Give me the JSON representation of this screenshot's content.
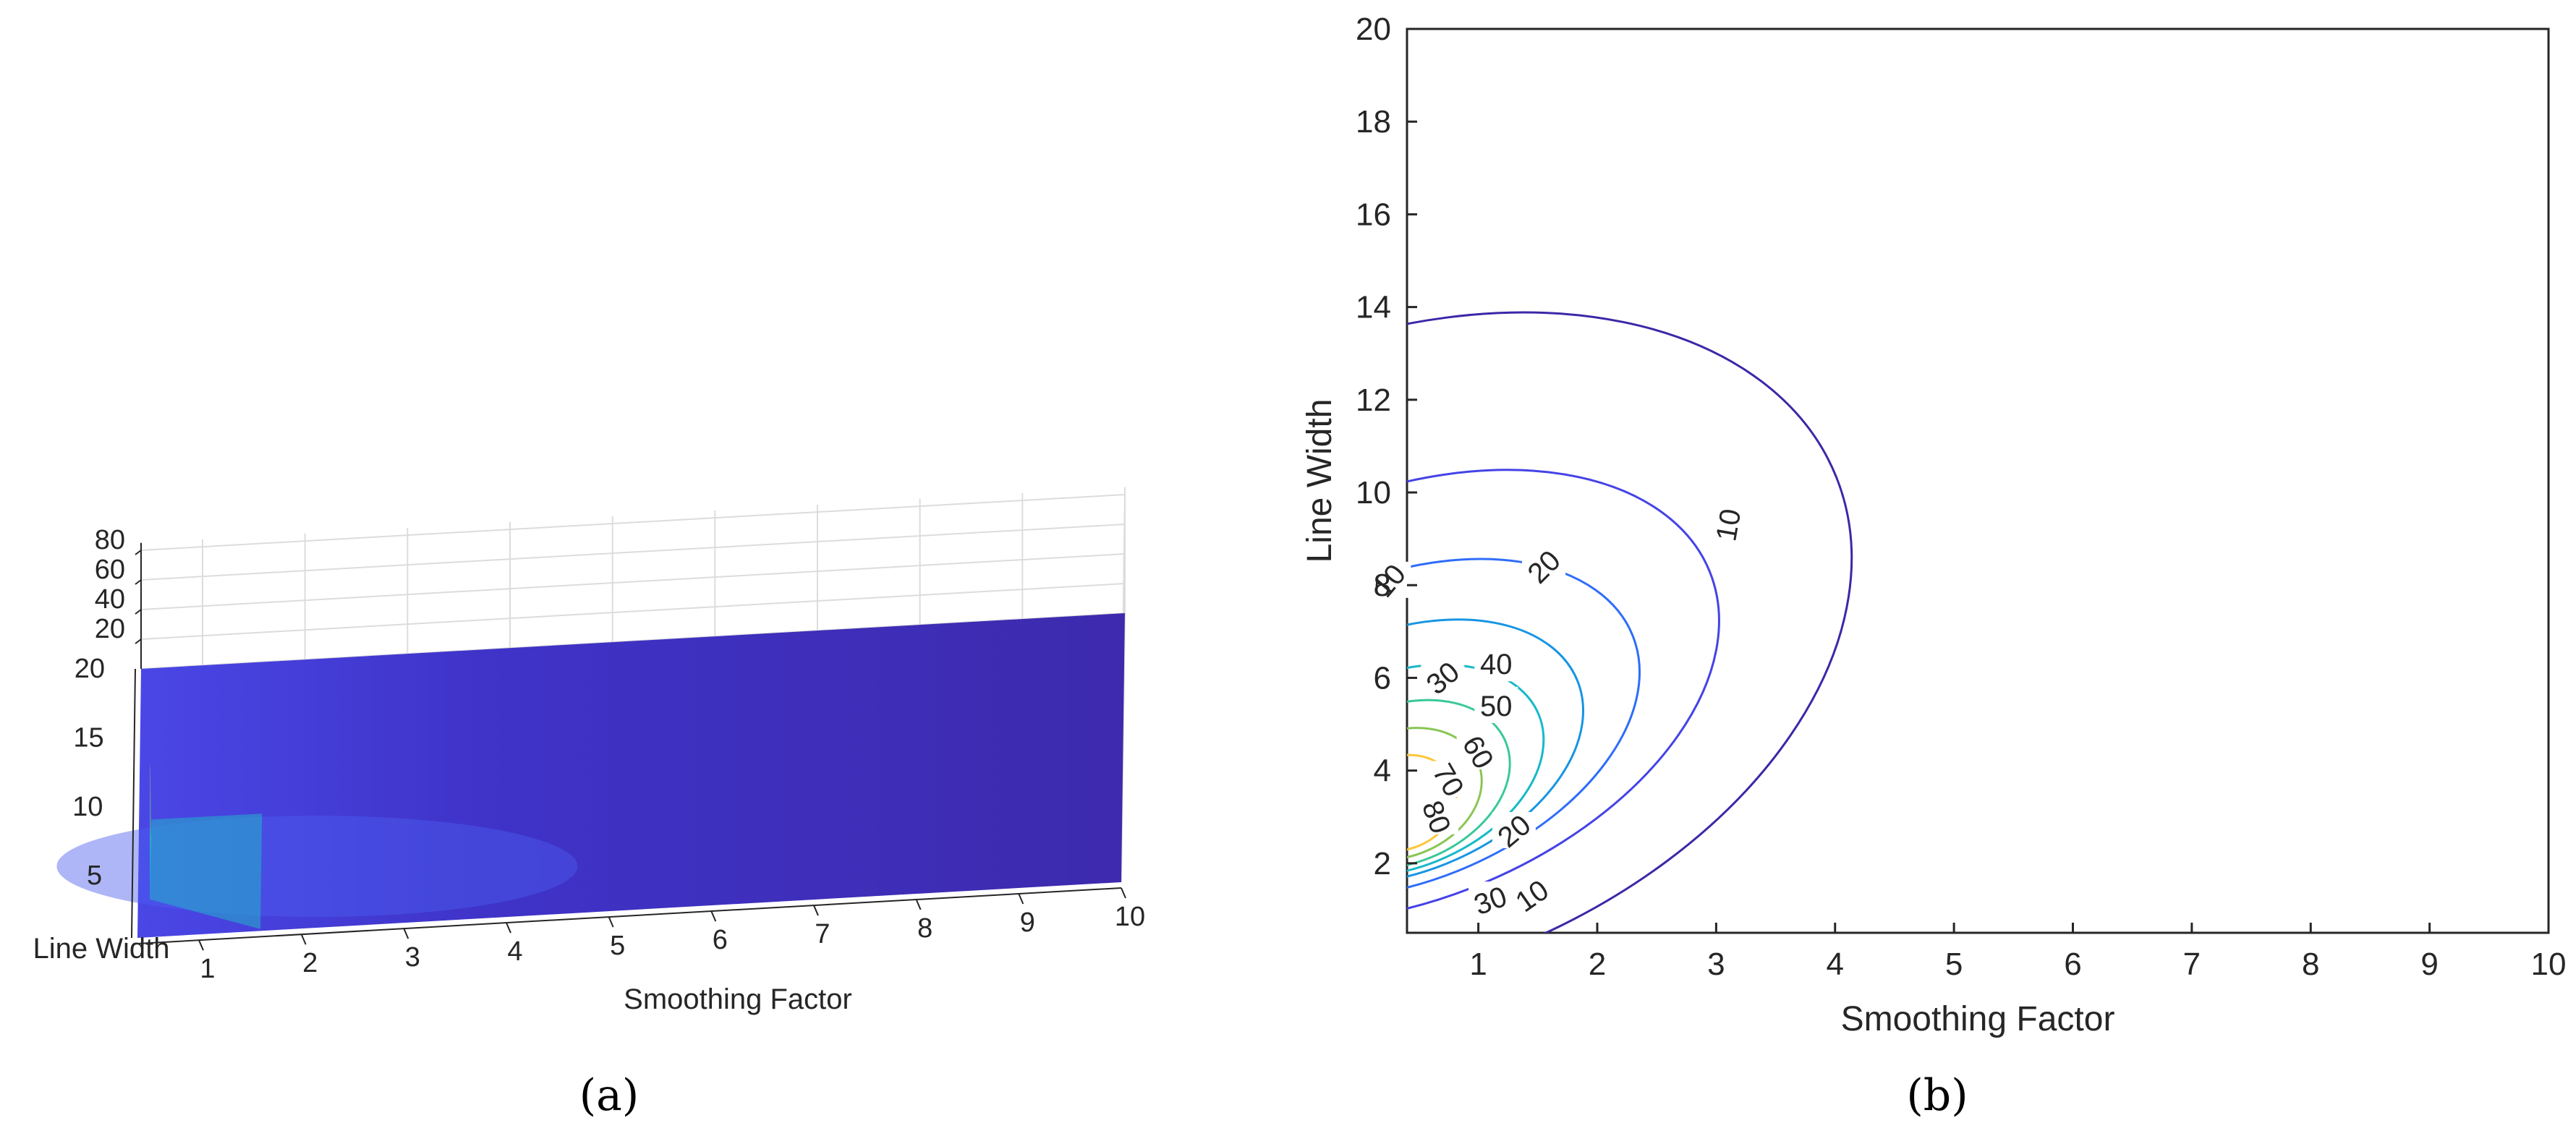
{
  "panels": {
    "a": {
      "caption": "(a)"
    },
    "b": {
      "caption": "(b)"
    }
  },
  "chart_data": [
    {
      "type": "surface",
      "panel": "a",
      "xlabel": "Smoothing Factor",
      "ylabel": "Line Width",
      "zlabel": "",
      "x_ticks": [
        "1",
        "2",
        "3",
        "4",
        "5",
        "6",
        "7",
        "8",
        "9",
        "10"
      ],
      "y_ticks": [
        "5",
        "10",
        "15",
        "20"
      ],
      "z_ticks": [
        "20",
        "40",
        "60",
        "80"
      ],
      "xlim": [
        0.4,
        10
      ],
      "ylim": [
        0.5,
        20
      ],
      "zlim": [
        0,
        80
      ],
      "grid": true,
      "colormap": [
        "#3e26a8",
        "#2f6dfa",
        "#17b9c9",
        "#8ac555",
        "#fec639",
        "#f9fb0e"
      ],
      "peak": {
        "x": 0.4,
        "y": 3.2,
        "z": 90
      }
    },
    {
      "type": "contour",
      "panel": "b",
      "xlabel": "Smoothing Factor",
      "ylabel": "Line Width",
      "x_ticks": [
        "1",
        "2",
        "3",
        "4",
        "5",
        "6",
        "7",
        "8",
        "9",
        "10"
      ],
      "y_ticks": [
        "2",
        "4",
        "6",
        "8",
        "10",
        "12",
        "14",
        "16",
        "18",
        "20"
      ],
      "xlim": [
        0.4,
        10
      ],
      "ylim": [
        0.5,
        20
      ],
      "levels": [
        10,
        20,
        30,
        40,
        50,
        60,
        70,
        80
      ],
      "level_labels": [
        {
          "text": "10",
          "level": 10
        },
        {
          "text": "10",
          "level": 10
        },
        {
          "text": "10",
          "level": 10
        },
        {
          "text": "20",
          "level": 20
        },
        {
          "text": "20",
          "level": 20
        },
        {
          "text": "30",
          "level": 30
        },
        {
          "text": "30",
          "level": 30
        },
        {
          "text": "40",
          "level": 40
        },
        {
          "text": "50",
          "level": 50
        },
        {
          "text": "60",
          "level": 60
        },
        {
          "text": "70",
          "level": 70
        },
        {
          "text": "80",
          "level": 80
        }
      ],
      "level_colors": {
        "10": "#3e26a8",
        "20": "#4543e6",
        "30": "#2f6dfa",
        "40": "#1795e3",
        "50": "#17b9c9",
        "60": "#39c89a",
        "70": "#8ac555",
        "80": "#fec639"
      },
      "peak_near": {
        "x": 0.4,
        "y": 3.2
      }
    }
  ]
}
